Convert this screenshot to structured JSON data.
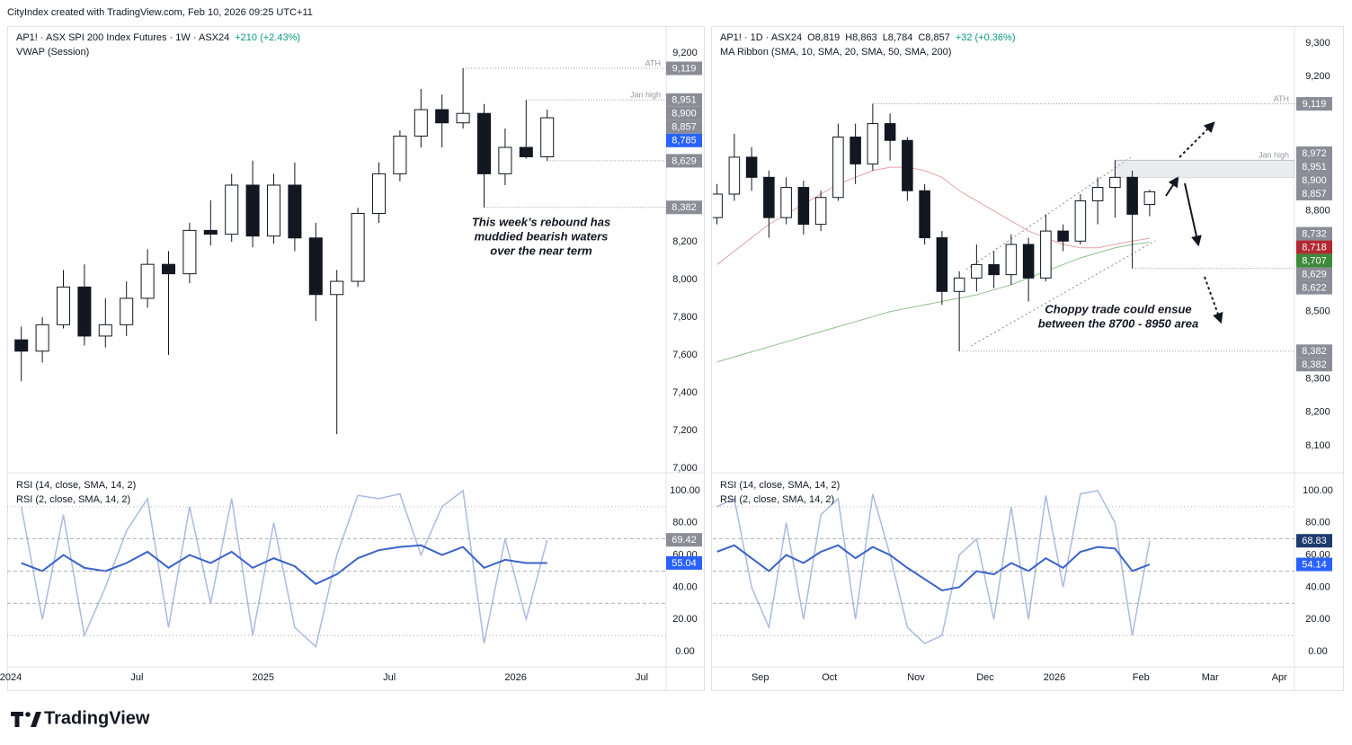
{
  "header": "CityIndex created with TradingView.com, Feb 10, 2026 09:25 UTC+11",
  "footer": "TradingView",
  "chart_data": [
    {
      "type": "candlestick",
      "legend": [
        "AP1! · ASX SPI 200 Index Futures · 1W · ASX24",
        "+210 (+2.43%)"
      ],
      "indicator": "VWAP (Session)",
      "categories": [
        "2024",
        null,
        null,
        null,
        null,
        null,
        "Jul",
        null,
        null,
        null,
        null,
        null,
        "2025",
        null,
        null,
        null,
        null,
        null,
        "Jul",
        null,
        null,
        null,
        null,
        null,
        "2026",
        null,
        null,
        null,
        null,
        null,
        "Jul"
      ],
      "open": [
        7680,
        7620,
        7760,
        7960,
        7700,
        7760,
        7900,
        8080,
        8030,
        8260,
        8240,
        8500,
        8230,
        8500,
        8220,
        7920,
        7990,
        8350,
        8560,
        8760,
        8900,
        8830,
        8880,
        8560,
        8700,
        8650,
        null,
        null,
        null,
        null,
        null
      ],
      "high": [
        7750,
        7800,
        8050,
        8080,
        7900,
        7990,
        8160,
        8150,
        8300,
        8420,
        8560,
        8630,
        8560,
        8620,
        8300,
        8050,
        8380,
        8620,
        8790,
        9010,
        8980,
        9119,
        8930,
        8800,
        8951,
        8900,
        null,
        null,
        null,
        null,
        null
      ],
      "low": [
        7460,
        7560,
        7740,
        7650,
        7640,
        7700,
        7850,
        7600,
        7980,
        8180,
        8200,
        8170,
        8190,
        8150,
        7780,
        7180,
        7960,
        8300,
        8520,
        8700,
        8700,
        8800,
        8382,
        8500,
        8640,
        8629,
        null,
        null,
        null,
        null,
        null
      ],
      "close": [
        7620,
        7760,
        7960,
        7700,
        7760,
        7900,
        8080,
        8030,
        8260,
        8240,
        8500,
        8230,
        8500,
        8220,
        7920,
        7990,
        8350,
        8560,
        8760,
        8900,
        8830,
        8880,
        8560,
        8700,
        8650,
        8857,
        null,
        null,
        null,
        null,
        null
      ],
      "ylim": [
        6990,
        9324
      ],
      "yticks": [
        {
          "value": 9200,
          "label": "9,200"
        },
        {
          "value": 8200,
          "label": "8,200"
        },
        {
          "value": 8000,
          "label": "8,000"
        },
        {
          "value": 7800,
          "label": "7,800"
        },
        {
          "value": 7600,
          "label": "7,600"
        },
        {
          "value": 7400,
          "label": "7,400"
        },
        {
          "value": 7200,
          "label": "7,200"
        },
        {
          "value": 7000,
          "label": "7,000"
        }
      ],
      "levels": [
        {
          "value": 9119,
          "label": "ATH"
        },
        {
          "value": 8951,
          "label": "Jan high"
        },
        {
          "value": 8629
        },
        {
          "value": 8382
        }
      ],
      "price_labels": [
        {
          "value": 9119,
          "label": "9,119",
          "color": "#8a8d96"
        },
        {
          "value": 8951,
          "label": "8,951",
          "color": "#8a8d96"
        },
        {
          "value": 8900,
          "label": "8,900",
          "color": "#8a8d96"
        },
        {
          "value": 8857,
          "label": "8,857",
          "color": "#8a8d96"
        },
        {
          "value": 8785,
          "label": "8,785",
          "color": "#2962ff"
        },
        {
          "value": 8629,
          "label": "8,629",
          "color": "#8a8d96"
        },
        {
          "value": 8382,
          "label": "8,382",
          "color": "#8a8d96"
        }
      ],
      "annotation": [
        "This week’s rebound has",
        "muddied bearish waters",
        "over the near term"
      ],
      "rsi": {
        "ylim": [
          -9.5,
          108.9
        ],
        "yticks": [
          {
            "value": 100,
            "label": "100.00"
          },
          {
            "value": 80,
            "label": "80.00"
          },
          {
            "value": 60,
            "label": "60.00"
          },
          {
            "value": 40,
            "label": "40.00"
          },
          {
            "value": 20,
            "label": "20.00"
          },
          {
            "value": 0,
            "label": "0.00"
          }
        ],
        "guides": [
          90,
          70,
          50,
          30,
          10
        ],
        "series": [
          {
            "name": "RSI (14, close, SMA, 14, 2)",
            "color": "#3a62c9",
            "label_color": "#2962ff",
            "values": [
              55,
              50,
              60,
              52,
              50,
              55,
              62,
              52,
              60,
              55,
              62,
              52,
              58,
              53,
              42,
              48,
              58,
              63,
              65,
              66,
              60,
              65,
              52,
              57,
              55,
              55.04,
              null,
              null,
              null,
              null,
              null
            ]
          },
          {
            "name": "RSI (2, close, SMA, 14, 2)",
            "color": "#a9bbe0",
            "label_color": "#8a8d96",
            "values": [
              90,
              20,
              85,
              10,
              40,
              75,
              95,
              15,
              90,
              30,
              95,
              10,
              80,
              15,
              3,
              60,
              97,
              95,
              98,
              60,
              90,
              100,
              5,
              70,
              20,
              69.42,
              null,
              null,
              null,
              null,
              null
            ]
          }
        ]
      }
    },
    {
      "type": "candlestick",
      "legend": [
        "AP1! · 1D · ASX24",
        "O8,819",
        "H8,863",
        "L8,784",
        "C8,857",
        "+32 (+0.36%)"
      ],
      "indicator": "MA Ribbon (SMA, 10, SMA, 20, SMA, 50, SMA, 200)",
      "categories": [
        null,
        null,
        null,
        "Sep",
        null,
        null,
        null,
        "Oct",
        null,
        null,
        null,
        null,
        "Nov",
        null,
        null,
        null,
        "Dec",
        null,
        null,
        null,
        "2026",
        null,
        null,
        null,
        null,
        "Feb",
        null,
        null,
        null,
        "Mar",
        null,
        null,
        null,
        "Apr"
      ],
      "open": [
        8780,
        8850,
        8960,
        8900,
        8780,
        8870,
        8760,
        8840,
        9020,
        8940,
        9060,
        9010,
        8860,
        8720,
        8560,
        8600,
        8640,
        8610,
        8700,
        8600,
        8740,
        8710,
        8830,
        8870,
        8900,
        8819,
        null,
        null,
        null,
        null,
        null,
        null,
        null,
        null
      ],
      "high": [
        8880,
        9030,
        8990,
        8920,
        8900,
        8890,
        8860,
        9060,
        9060,
        9119,
        9090,
        9020,
        8880,
        8740,
        8620,
        8700,
        8680,
        8730,
        8720,
        8790,
        8760,
        8850,
        8900,
        8951,
        8920,
        8863,
        null,
        null,
        null,
        null,
        null,
        null,
        null,
        null
      ],
      "low": [
        8760,
        8830,
        8860,
        8720,
        8760,
        8730,
        8740,
        8830,
        8880,
        8920,
        8950,
        8830,
        8700,
        8520,
        8382,
        8560,
        8570,
        8580,
        8530,
        8590,
        8680,
        8700,
        8760,
        8780,
        8629,
        8784,
        null,
        null,
        null,
        null,
        null,
        null,
        null,
        null
      ],
      "close": [
        8850,
        8960,
        8900,
        8780,
        8870,
        8760,
        8840,
        9020,
        8940,
        9060,
        9010,
        8860,
        8720,
        8560,
        8600,
        8640,
        8610,
        8700,
        8600,
        8740,
        8710,
        8830,
        8870,
        8900,
        8790,
        8857,
        null,
        null,
        null,
        null,
        null,
        null,
        null,
        null
      ],
      "series": [
        {
          "color": "#e3a3a3",
          "values": [
            8640,
            8680,
            8720,
            8760,
            8790,
            8820,
            8850,
            8880,
            8900,
            8920,
            8930,
            8930,
            8920,
            8900,
            8860,
            8830,
            8800,
            8770,
            8740,
            8720,
            8700,
            8690,
            8690,
            8700,
            8710,
            8718,
            null,
            null,
            null,
            null,
            null,
            null,
            null,
            null
          ]
        },
        {
          "color": "#93bf8e",
          "values": [
            8350,
            8365,
            8380,
            8395,
            8410,
            8425,
            8440,
            8455,
            8470,
            8485,
            8500,
            8510,
            8520,
            8530,
            8540,
            8550,
            8565,
            8580,
            8600,
            8620,
            8640,
            8660,
            8675,
            8690,
            8700,
            8707,
            null,
            null,
            null,
            null,
            null,
            null,
            null,
            null
          ]
        }
      ],
      "ylim": [
        8028,
        9340
      ],
      "yticks": [
        {
          "value": 9300,
          "label": "9,300"
        },
        {
          "value": 9200,
          "label": "9,200"
        },
        {
          "value": 8800,
          "label": "8,800"
        },
        {
          "value": 8500,
          "label": "8,500"
        },
        {
          "value": 8300,
          "label": "8,300"
        },
        {
          "value": 8200,
          "label": "8,200"
        },
        {
          "value": 8100,
          "label": "8,100"
        }
      ],
      "levels": [
        {
          "value": 9119,
          "label": "ATH"
        },
        {
          "value": 8951,
          "label": "Jan high"
        },
        {
          "value": 8629
        },
        {
          "value": 8382
        }
      ],
      "zone": [
        8900,
        8951
      ],
      "price_labels": [
        {
          "value": 9119,
          "label": "9,119",
          "color": "#8a8d96"
        },
        {
          "value": 8972,
          "label": "8,972",
          "color": "#8a8d96"
        },
        {
          "value": 8951,
          "label": "8,951",
          "color": "#8a8d96"
        },
        {
          "value": 8900,
          "label": "8,900",
          "color": "#8a8d96"
        },
        {
          "value": 8857,
          "label": "8,857",
          "color": "#8a8d96"
        },
        {
          "value": 8732,
          "label": "8,732",
          "color": "#8a8d96"
        },
        {
          "value": 8718,
          "label": "8,718",
          "color": "#b22833"
        },
        {
          "value": 8707,
          "label": "8,707",
          "color": "#3d8a3a"
        },
        {
          "value": 8629,
          "label": "8,629",
          "color": "#8a8d96"
        },
        {
          "value": 8622,
          "label": "8,622",
          "color": "#8a8d96"
        },
        {
          "value": 8382,
          "label": "8,382",
          "color": "#8a8d96"
        },
        {
          "value": 8382,
          "label": "8,382",
          "color": "#8a8d96"
        }
      ],
      "annotation": [
        "Choppy trade could ensue",
        "between the 8700 - 8950 area"
      ],
      "rsi": {
        "ylim": [
          -9.5,
          108.9
        ],
        "yticks": [
          {
            "value": 100,
            "label": "100.00"
          },
          {
            "value": 80,
            "label": "80.00"
          },
          {
            "value": 60,
            "label": "60.00"
          },
          {
            "value": 40,
            "label": "40.00"
          },
          {
            "value": 20,
            "label": "20.00"
          },
          {
            "value": 0,
            "label": "0.00"
          }
        ],
        "guides": [
          90,
          70,
          50,
          30,
          10
        ],
        "series": [
          {
            "name": "RSI (14, close, SMA, 14, 2)",
            "color": "#3a62c9",
            "label_color": "#2962ff",
            "values": [
              62,
              66,
              58,
              50,
              60,
              55,
              62,
              66,
              58,
              65,
              60,
              52,
              45,
              38,
              40,
              50,
              48,
              55,
              50,
              58,
              52,
              62,
              65,
              64,
              50,
              54.14,
              null,
              null,
              null,
              null,
              null,
              null,
              null,
              null
            ]
          },
          {
            "name": "RSI (2, close, SMA, 14, 2)",
            "color": "#a9bbe0",
            "label_color": "#1e3a6e",
            "values": [
              90,
              95,
              40,
              15,
              80,
              20,
              85,
              95,
              20,
              98,
              60,
              15,
              5,
              10,
              60,
              70,
              20,
              90,
              20,
              97,
              40,
              98,
              100,
              80,
              10,
              68.83,
              null,
              null,
              null,
              null,
              null,
              null,
              null,
              null
            ]
          }
        ]
      }
    }
  ]
}
